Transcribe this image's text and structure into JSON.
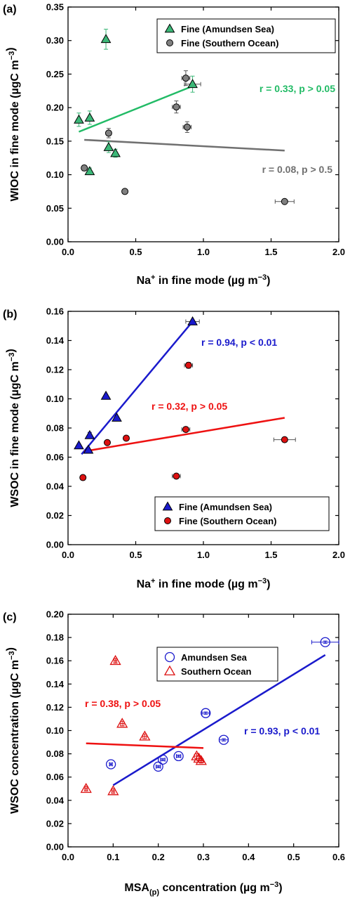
{
  "chart_data": [
    {
      "type": "scatter",
      "panel_label": "(a)",
      "xlabel": "Na+ in fine mode (µg m−3)",
      "ylabel": "WIOC in fine mode (µgC m−3)",
      "xlabel_parts": {
        "pre": "Na",
        "sup": "+",
        "post": " in fine mode (µg m",
        "sup2": "−3",
        "end": ")"
      },
      "ylabel_parts": {
        "pre": "WIOC in fine mode (µgC m",
        "sup": "−3",
        "end": ")"
      },
      "xlim": [
        0,
        2.0
      ],
      "ylim": [
        0,
        0.35
      ],
      "xticks": [
        "0.0",
        "0.5",
        "1.0",
        "1.5",
        "2.0"
      ],
      "xtick_values": [
        0,
        0.5,
        1.0,
        1.5,
        2.0
      ],
      "yticks": [
        "0.00",
        "0.05",
        "0.10",
        "0.15",
        "0.20",
        "0.25",
        "0.30",
        "0.35"
      ],
      "ytick_values": [
        0,
        0.05,
        0.1,
        0.15,
        0.2,
        0.25,
        0.3,
        0.35
      ],
      "legend_position": "top-right",
      "series": [
        {
          "name": "Fine (Amundsen Sea)",
          "marker": "triangle",
          "color": "#3cb878",
          "x": [
            0.08,
            0.16,
            0.28,
            0.3,
            0.35,
            0.16,
            0.92
          ],
          "y": [
            0.182,
            0.185,
            0.302,
            0.141,
            0.132,
            0.105,
            0.235
          ],
          "xerr": [
            0.0,
            0.01,
            0.01,
            0.01,
            0.01,
            0.01,
            0.06
          ],
          "yerr": [
            0.01,
            0.01,
            0.015,
            0.008,
            0.006,
            0.005,
            0.012
          ],
          "fit": {
            "x": [
              0.08,
              0.92
            ],
            "y": [
              0.164,
              0.232
            ],
            "color": "#22bb66",
            "label": "r = 0.33, p > 0.05"
          }
        },
        {
          "name": "Fine (Southern Ocean)",
          "marker": "circle",
          "color": "#808080",
          "x": [
            0.12,
            0.3,
            0.42,
            0.8,
            0.87,
            0.88,
            1.6
          ],
          "y": [
            0.11,
            0.162,
            0.075,
            0.201,
            0.244,
            0.171,
            0.06
          ],
          "xerr": [
            0.01,
            0.01,
            0.01,
            0.03,
            0.03,
            0.03,
            0.07
          ],
          "yerr": [
            0.004,
            0.007,
            0.003,
            0.009,
            0.011,
            0.008,
            0.003
          ],
          "fit": {
            "x": [
              0.12,
              1.6
            ],
            "y": [
              0.152,
              0.136
            ],
            "color": "#707070",
            "label": "r = 0.08, p > 0.5"
          }
        }
      ]
    },
    {
      "type": "scatter",
      "panel_label": "(b)",
      "xlabel": "Na+ in fine mode (µg m−3)",
      "ylabel": "WSOC in fine mode (µgC m−3)",
      "xlabel_parts": {
        "pre": "Na",
        "sup": "+",
        "post": " in fine mode (µg m",
        "sup2": "−3",
        "end": ")"
      },
      "ylabel_parts": {
        "pre": "WSOC in fine mode (µgC m",
        "sup": "−3",
        "end": ")"
      },
      "xlim": [
        0,
        2.0
      ],
      "ylim": [
        0,
        0.16
      ],
      "xticks": [
        "0.0",
        "0.5",
        "1.0",
        "1.5",
        "2.0"
      ],
      "xtick_values": [
        0,
        0.5,
        1.0,
        1.5,
        2.0
      ],
      "yticks": [
        "0.00",
        "0.02",
        "0.04",
        "0.06",
        "0.08",
        "0.10",
        "0.12",
        "0.14",
        "0.16"
      ],
      "ytick_values": [
        0,
        0.02,
        0.04,
        0.06,
        0.08,
        0.1,
        0.12,
        0.14,
        0.16
      ],
      "legend_position": "bottom-right",
      "series": [
        {
          "name": "Fine (Amundsen Sea)",
          "marker": "triangle",
          "color": "#1a1acc",
          "x": [
            0.08,
            0.15,
            0.16,
            0.28,
            0.36,
            0.92
          ],
          "y": [
            0.068,
            0.065,
            0.075,
            0.102,
            0.087,
            0.153
          ],
          "xerr": [
            0.0,
            0.01,
            0.01,
            0.01,
            0.01,
            0.05
          ],
          "yerr": [
            0.001,
            0.001,
            0.002,
            0.001,
            0.001,
            0.001
          ],
          "fit": {
            "x": [
              0.1,
              0.92
            ],
            "y": [
              0.062,
              0.153
            ],
            "color": "#1a1acc",
            "label": "r = 0.94, p < 0.01"
          }
        },
        {
          "name": "Fine (Southern Ocean)",
          "marker": "circle",
          "color": "#dd1111",
          "x": [
            0.11,
            0.29,
            0.43,
            0.8,
            0.87,
            0.89,
            1.6
          ],
          "y": [
            0.046,
            0.07,
            0.073,
            0.047,
            0.079,
            0.123,
            0.072
          ],
          "xerr": [
            0.0,
            0.01,
            0.01,
            0.03,
            0.03,
            0.03,
            0.08
          ],
          "yerr": [
            0.001,
            0.001,
            0.001,
            0.001,
            0.001,
            0.002,
            0.001
          ],
          "fit": {
            "x": [
              0.12,
              1.6
            ],
            "y": [
              0.064,
              0.087
            ],
            "color": "#ee1111",
            "label": "r = 0.32, p > 0.05"
          }
        }
      ]
    },
    {
      "type": "scatter",
      "panel_label": "(c)",
      "xlabel": "MSA(p) concentration (µg m−3)",
      "ylabel": "WSOC concentration (µgC m−3)",
      "xlabel_parts": {
        "pre": "MSA",
        "sub": "(p)",
        "post": " concentration (µg m",
        "sup2": "−3",
        "end": ")"
      },
      "ylabel_parts": {
        "pre": "WSOC concentration (µgC m",
        "sup": "−3",
        "end": ")"
      },
      "xlim": [
        0,
        0.6
      ],
      "ylim": [
        0,
        0.2
      ],
      "xticks": [
        "0.0",
        "0.1",
        "0.2",
        "0.3",
        "0.4",
        "0.5",
        "0.6"
      ],
      "xtick_values": [
        0,
        0.1,
        0.2,
        0.3,
        0.4,
        0.5,
        0.6
      ],
      "yticks": [
        "0.00",
        "0.02",
        "0.04",
        "0.06",
        "0.08",
        "0.10",
        "0.12",
        "0.14",
        "0.16",
        "0.18",
        "0.20"
      ],
      "ytick_values": [
        0,
        0.02,
        0.04,
        0.06,
        0.08,
        0.1,
        0.12,
        0.14,
        0.16,
        0.18,
        0.2
      ],
      "legend_position": "top-center",
      "series": [
        {
          "name": "Amundsen Sea",
          "marker": "open-circle",
          "color": "#1a1acc",
          "x": [
            0.095,
            0.2,
            0.21,
            0.245,
            0.305,
            0.345,
            0.57
          ],
          "y": [
            0.071,
            0.069,
            0.075,
            0.078,
            0.115,
            0.092,
            0.176
          ],
          "xerr": [
            0.003,
            0.005,
            0.005,
            0.005,
            0.008,
            0.01,
            0.03
          ],
          "yerr": [
            0.001,
            0.001,
            0.001,
            0.001,
            0.001,
            0.001,
            0.001
          ],
          "fit": {
            "x": [
              0.1,
              0.57
            ],
            "y": [
              0.053,
              0.165
            ],
            "color": "#1a1acc",
            "label": "r = 0.93, p < 0.01"
          }
        },
        {
          "name": "Southern Ocean",
          "marker": "open-triangle",
          "color": "#dd1111",
          "x": [
            0.04,
            0.1,
            0.105,
            0.12,
            0.17,
            0.285,
            0.29,
            0.295
          ],
          "y": [
            0.05,
            0.048,
            0.16,
            0.106,
            0.095,
            0.078,
            0.076,
            0.074
          ],
          "xerr": [
            0.003,
            0.003,
            0.003,
            0.004,
            0.004,
            0.005,
            0.005,
            0.005
          ],
          "yerr": [
            0.002,
            0.002,
            0.002,
            0.002,
            0.002,
            0.002,
            0.002,
            0.002
          ],
          "fit": {
            "x": [
              0.04,
              0.3
            ],
            "y": [
              0.089,
              0.085
            ],
            "color": "#ee1111",
            "label": "r = 0.38, p > 0.05"
          }
        }
      ]
    }
  ]
}
